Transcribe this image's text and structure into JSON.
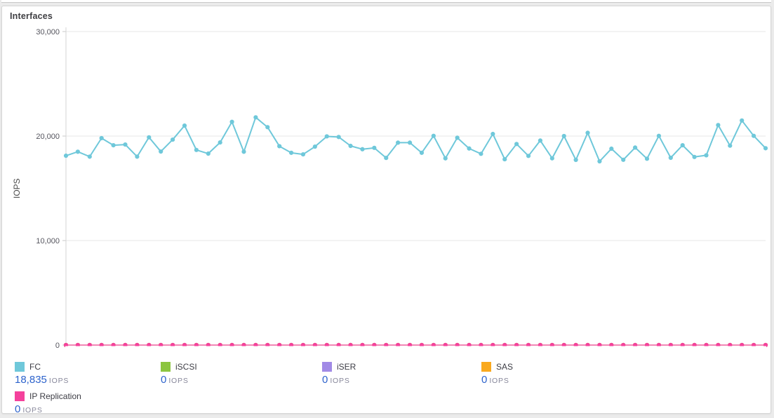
{
  "panel": {
    "title": "Interfaces"
  },
  "chart_data": {
    "type": "line",
    "title": "Interfaces",
    "xlabel": "",
    "ylabel": "IOPS",
    "ylim": [
      0,
      30000
    ],
    "grid": true,
    "legend_position": "bottom",
    "x_points": 60,
    "x_tick_labels_visible": false,
    "yticks": [
      {
        "value": 0,
        "label": "0"
      },
      {
        "value": 10000,
        "label": "10,000"
      },
      {
        "value": 20000,
        "label": "20,000"
      },
      {
        "value": 30000,
        "label": "30,000"
      }
    ],
    "series": [
      {
        "name": "FC",
        "color": "#6fc8da",
        "current": 18835,
        "values": [
          18120,
          18500,
          18030,
          19800,
          19120,
          19190,
          18030,
          19880,
          18520,
          19660,
          21000,
          18670,
          18320,
          19390,
          21360,
          18500,
          21790,
          20850,
          19030,
          18400,
          18250,
          18990,
          19970,
          19910,
          19060,
          18740,
          18870,
          17910,
          19370,
          19370,
          18400,
          20020,
          17870,
          19840,
          18810,
          18300,
          20200,
          17780,
          19240,
          18100,
          19570,
          17870,
          20000,
          17720,
          20310,
          17580,
          18790,
          17730,
          18900,
          17830,
          20020,
          17920,
          19120,
          18000,
          18160,
          21050,
          19080,
          21490,
          20020,
          18835
        ]
      },
      {
        "name": "iSCSI",
        "color": "#8cc540",
        "current": 0,
        "constant": 0
      },
      {
        "name": "iSER",
        "color": "#a18ae6",
        "current": 0,
        "constant": 0
      },
      {
        "name": "SAS",
        "color": "#f9a91e",
        "current": 0,
        "constant": 0
      },
      {
        "name": "IP Replication",
        "color": "#f287b5",
        "marker_color": "#f4419c",
        "current": 0,
        "constant": 0
      }
    ]
  },
  "legend": {
    "items": [
      {
        "label": "FC",
        "value": "18,835",
        "unit": "IOPS",
        "color": "#6fc8da"
      },
      {
        "label": "iSCSI",
        "value": "0",
        "unit": "IOPS",
        "color": "#8cc540"
      },
      {
        "label": "iSER",
        "value": "0",
        "unit": "IOPS",
        "color": "#a18ae6"
      },
      {
        "label": "SAS",
        "value": "0",
        "unit": "IOPS",
        "color": "#f9a91e"
      },
      {
        "label": "IP Replication",
        "value": "0",
        "unit": "IOPS",
        "color": "#f4419c"
      }
    ]
  },
  "colors": {
    "value_text": "#2d63cc",
    "unit_text": "#87879a",
    "gridline": "#e7e7e7",
    "axis_line": "#d4d4d4",
    "tick_text": "#55555e"
  }
}
